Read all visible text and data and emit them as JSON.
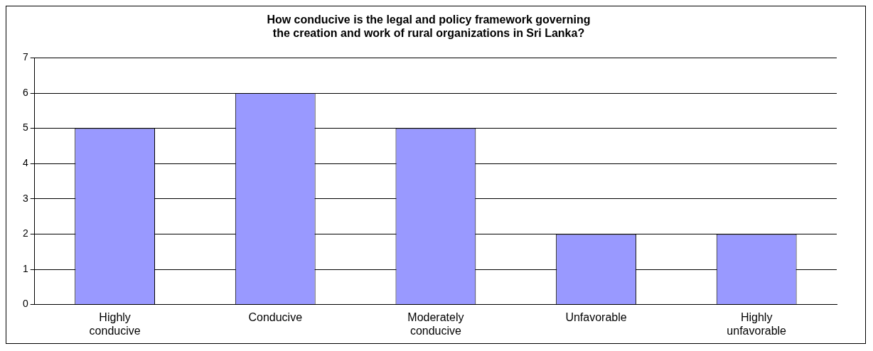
{
  "chart_data": {
    "type": "bar",
    "title": "How conducive is the legal and policy framework governing\nthe creation and work of rural organizations in Sri Lanka?",
    "categories": [
      "Highly conducive",
      "Conducive",
      "Moderately conducive",
      "Unfavorable",
      "Highly unfavorable"
    ],
    "values": [
      5,
      6,
      5,
      2,
      2
    ],
    "color": "#9999ff",
    "ylim": [
      0,
      7
    ],
    "yticks": [
      0,
      1,
      2,
      3,
      4,
      5,
      6,
      7
    ],
    "grid": "y",
    "legend": false
  }
}
